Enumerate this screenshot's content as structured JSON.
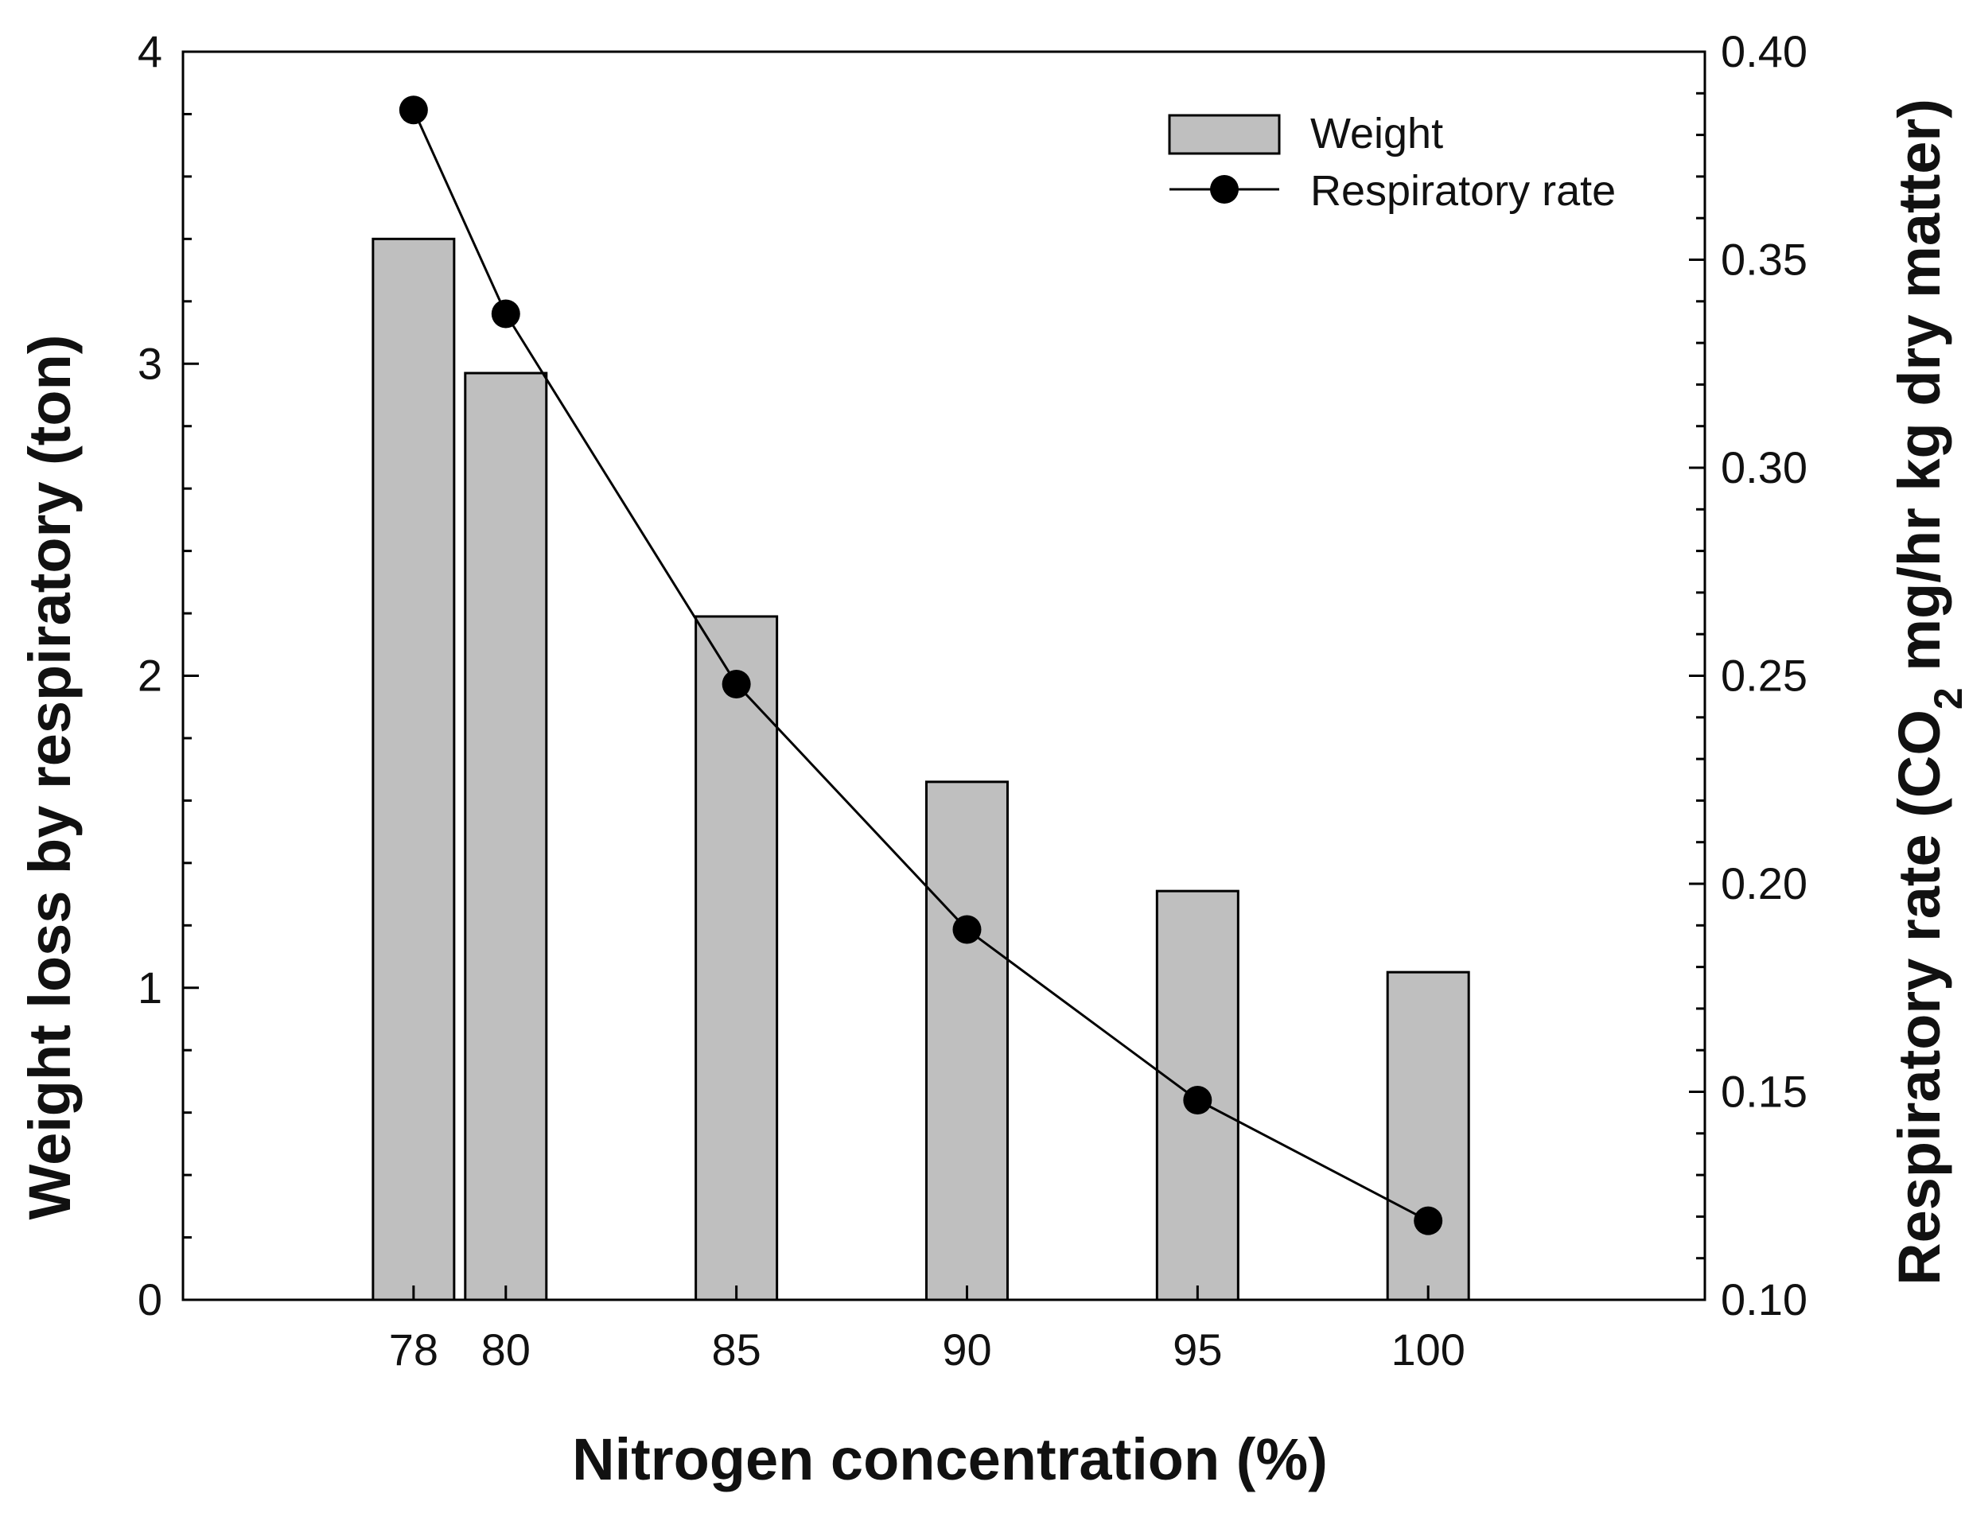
{
  "chart_data": {
    "type": "bar+line",
    "x_categories": [
      78,
      80,
      85,
      90,
      95,
      100
    ],
    "xlabel": "Nitrogen concentration (%)",
    "xlim": [
      73,
      106
    ],
    "series": [
      {
        "name": "Weight",
        "type": "bar",
        "axis": "left",
        "values": [
          3.4,
          2.97,
          2.19,
          1.66,
          1.31,
          1.05
        ],
        "color": "#bfbfbf"
      },
      {
        "name": "Respiratory rate",
        "type": "line",
        "axis": "right",
        "values": [
          0.386,
          0.337,
          0.248,
          0.189,
          0.148,
          0.119
        ],
        "color": "#000000"
      }
    ],
    "y_left": {
      "label": "Weight loss by respiratory (ton)",
      "range": [
        0,
        4
      ],
      "ticks": [
        0,
        1,
        2,
        3,
        4
      ],
      "tick_labels": [
        "0",
        "1",
        "2",
        "3",
        "4"
      ]
    },
    "y_right": {
      "label_prefix": "Respiratory rate (CO",
      "label_sub": "2",
      "label_suffix": " mg/hr kg dry matter)",
      "range": [
        0.1,
        0.4
      ],
      "ticks": [
        0.1,
        0.15,
        0.2,
        0.25,
        0.3,
        0.35,
        0.4
      ],
      "tick_labels": [
        "0.10",
        "0.15",
        "0.20",
        "0.25",
        "0.30",
        "0.35",
        "0.40"
      ]
    },
    "legend": {
      "position": "top-right",
      "entries": [
        "Weight",
        "Respiratory rate"
      ]
    },
    "grid": false
  }
}
